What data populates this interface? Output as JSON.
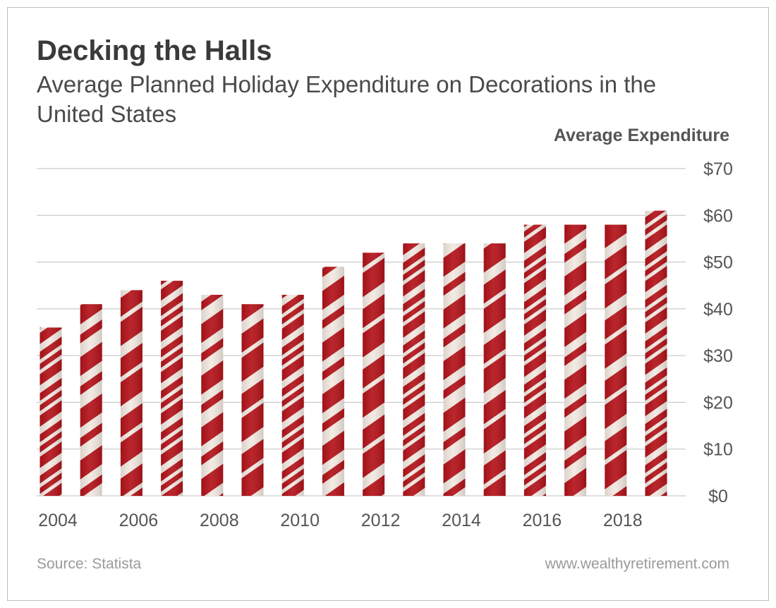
{
  "header": {
    "title": "Decking the Halls",
    "subtitle": "Average Planned Holiday Expenditure on Decorations in the United States"
  },
  "footer": {
    "source": "Source: Statista",
    "website": "www.wealthyretirement.com"
  },
  "colors": {
    "stripe_red": "#b3131a",
    "stripe_cream": "#f2e9e1",
    "gridline": "#bfbfbf",
    "title_text": "#3a3a3a"
  },
  "chart_data": {
    "type": "bar",
    "title": "Decking the Halls",
    "subtitle": "Average Planned Holiday Expenditure on Decorations in the United States",
    "xlabel": "",
    "ylabel": "Average Expenditure",
    "categories": [
      "2004",
      "2005",
      "2006",
      "2007",
      "2008",
      "2009",
      "2010",
      "2011",
      "2012",
      "2013",
      "2014",
      "2015",
      "2016",
      "2017",
      "2018",
      "2019"
    ],
    "values": [
      36,
      41,
      44,
      46,
      43,
      41,
      43,
      49,
      52,
      54,
      54,
      54,
      58,
      58,
      58,
      61
    ],
    "x_tick_labels": [
      "2004",
      "2006",
      "2008",
      "2010",
      "2012",
      "2014",
      "2016",
      "2018"
    ],
    "y_tick_labels": [
      "$0",
      "$10",
      "$20",
      "$30",
      "$40",
      "$50",
      "$60",
      "$70"
    ],
    "ylim": [
      0,
      70
    ],
    "y_ticks": [
      0,
      10,
      20,
      30,
      40,
      50,
      60,
      70
    ],
    "y_axis_side": "right",
    "grid": true,
    "legend": "none",
    "bar_style": "candy-cane stripes"
  }
}
